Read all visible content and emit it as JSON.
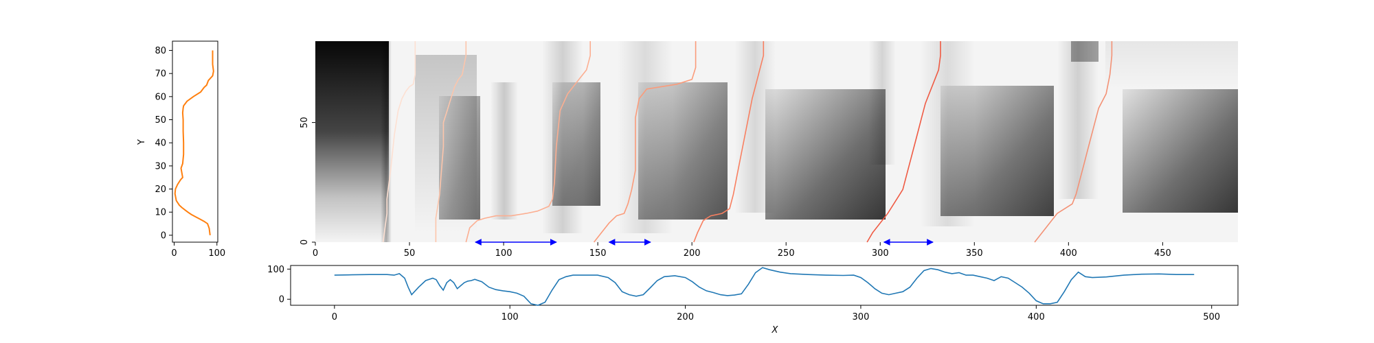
{
  "colors": {
    "orange": "#ff7f0e",
    "blue": "#1f77b4",
    "arrow": "#0000ff",
    "reds": [
      "#fde0d2",
      "#fcc5ab",
      "#fcae91",
      "#fb9b7a",
      "#f87f60",
      "#ef5a43",
      "#f39175",
      "#f6a284"
    ]
  },
  "chart_data": [
    {
      "id": "left-profile",
      "type": "line",
      "xlabel": "",
      "ylabel": "Y",
      "xlim": [
        -4,
        102
      ],
      "ylim": [
        -3,
        84
      ],
      "xticks": [
        "0",
        "100"
      ],
      "yticks": [
        "0",
        "10",
        "20",
        "30",
        "40",
        "50",
        "60",
        "70",
        "80"
      ],
      "series": [
        {
          "x": [
            84,
            82,
            78,
            70,
            60,
            50,
            40,
            32,
            25,
            18,
            12,
            5,
            2,
            3,
            8,
            15,
            20,
            18,
            16,
            20,
            22,
            22,
            21,
            21,
            20,
            21,
            22,
            30,
            45,
            62,
            70,
            76,
            80,
            90,
            92,
            90,
            90
          ],
          "y": [
            0,
            3,
            5,
            6,
            7,
            8,
            9,
            10,
            11,
            12,
            13,
            15,
            18,
            20,
            22,
            24,
            25,
            27,
            29,
            31,
            35,
            40,
            45,
            50,
            53,
            55,
            56,
            58,
            60,
            62,
            64,
            65,
            67,
            69,
            71,
            74,
            80
          ]
        }
      ]
    },
    {
      "id": "main-heatmap",
      "type": "heatmap",
      "xlabel": "",
      "ylabel": "",
      "xlim": [
        0,
        490
      ],
      "ylim": [
        0,
        84
      ],
      "xticks": [
        "0",
        "50",
        "100",
        "150",
        "200",
        "250",
        "300",
        "350",
        "400",
        "450"
      ],
      "yticks": [
        "0",
        "50"
      ],
      "series": [
        {
          "x": [
            36,
            38,
            38,
            40,
            42,
            44,
            46,
            48,
            50,
            52,
            53,
            53,
            53
          ],
          "y": [
            0,
            12,
            18,
            30,
            45,
            55,
            60,
            63,
            65,
            66,
            70,
            78,
            84
          ]
        },
        {
          "x": [
            64,
            64,
            66,
            67,
            68,
            68,
            70,
            72,
            74,
            76,
            78,
            80,
            80
          ],
          "y": [
            0,
            10,
            20,
            30,
            40,
            50,
            55,
            60,
            65,
            68,
            70,
            78,
            84
          ]
        },
        {
          "x": [
            80,
            82,
            86,
            90,
            96,
            104,
            112,
            118,
            124,
            126,
            127,
            128,
            130,
            134,
            140,
            144,
            146,
            146
          ],
          "y": [
            0,
            6,
            9,
            10,
            11,
            11,
            12,
            13,
            15,
            18,
            25,
            40,
            55,
            62,
            68,
            72,
            78,
            84
          ]
        },
        {
          "x": [
            148,
            152,
            156,
            160,
            164,
            166,
            168,
            170,
            170,
            170,
            172,
            176,
            184,
            192,
            200,
            202,
            202
          ],
          "y": [
            0,
            4,
            8,
            11,
            12,
            16,
            22,
            30,
            40,
            52,
            60,
            64,
            65,
            66,
            68,
            73,
            84
          ]
        },
        {
          "x": [
            201,
            203,
            206,
            210,
            216,
            220,
            222,
            224,
            226,
            228,
            230,
            232,
            234,
            236,
            238,
            238
          ],
          "y": [
            0,
            4,
            9,
            11,
            12,
            14,
            20,
            28,
            36,
            44,
            52,
            60,
            66,
            72,
            78,
            84
          ]
        },
        {
          "x": [
            293,
            296,
            300,
            304,
            308,
            312,
            314,
            316,
            318,
            320,
            322,
            324,
            326,
            328,
            331,
            332,
            332
          ],
          "y": [
            0,
            4,
            8,
            12,
            17,
            22,
            28,
            34,
            40,
            46,
            52,
            58,
            62,
            66,
            72,
            78,
            84
          ]
        },
        {
          "x": [
            382,
            386,
            390,
            394,
            398,
            402,
            404,
            406,
            408,
            410,
            412,
            414,
            416,
            420,
            422,
            423,
            423
          ],
          "y": [
            0,
            4,
            8,
            12,
            14,
            16,
            20,
            26,
            32,
            38,
            44,
            50,
            56,
            62,
            70,
            78,
            84
          ]
        }
      ],
      "annotations": [
        {
          "type": "double-arrow",
          "x0": 85,
          "x1": 128,
          "y": 0
        },
        {
          "type": "double-arrow",
          "x0": 156,
          "x1": 178,
          "y": 0
        },
        {
          "type": "double-arrow",
          "x0": 302,
          "x1": 328,
          "y": 0
        }
      ]
    },
    {
      "id": "bottom-profile",
      "type": "line",
      "xlabel": "X",
      "ylabel": "",
      "xlim": [
        -25,
        515
      ],
      "ylim": [
        -20,
        112
      ],
      "xticks": [
        "0",
        "100",
        "200",
        "300",
        "400",
        "500"
      ],
      "yticks": [
        "0",
        "100"
      ],
      "series": [
        {
          "x": [
            0,
            10,
            20,
            30,
            34,
            37,
            40,
            42,
            44,
            48,
            52,
            56,
            58,
            60,
            62,
            64,
            66,
            68,
            70,
            72,
            74,
            76,
            78,
            80,
            84,
            88,
            92,
            96,
            100,
            104,
            108,
            112,
            116,
            120,
            124,
            128,
            132,
            136,
            140,
            150,
            156,
            160,
            164,
            168,
            172,
            176,
            180,
            184,
            188,
            194,
            200,
            204,
            208,
            212,
            216,
            220,
            224,
            228,
            232,
            236,
            240,
            244,
            248,
            254,
            260,
            270,
            280,
            290,
            296,
            300,
            304,
            308,
            312,
            316,
            320,
            324,
            328,
            332,
            336,
            340,
            344,
            348,
            352,
            356,
            360,
            364,
            368,
            372,
            376,
            380,
            384,
            388,
            392,
            396,
            400,
            404,
            408,
            412,
            416,
            420,
            424,
            428,
            432,
            440,
            450,
            460,
            470,
            480,
            490
          ],
          "y": [
            80,
            81,
            82,
            82,
            80,
            85,
            70,
            40,
            15,
            40,
            62,
            70,
            65,
            45,
            30,
            55,
            65,
            55,
            35,
            45,
            55,
            60,
            62,
            66,
            58,
            40,
            32,
            28,
            25,
            20,
            10,
            -15,
            -20,
            -10,
            30,
            65,
            75,
            80,
            80,
            80,
            72,
            55,
            25,
            15,
            10,
            15,
            38,
            62,
            75,
            78,
            72,
            58,
            40,
            28,
            22,
            15,
            12,
            14,
            18,
            50,
            88,
            105,
            98,
            90,
            85,
            82,
            80,
            79,
            80,
            72,
            55,
            35,
            20,
            15,
            20,
            25,
            40,
            70,
            95,
            102,
            98,
            90,
            85,
            88,
            80,
            80,
            75,
            70,
            62,
            75,
            70,
            55,
            40,
            20,
            -5,
            -15,
            -15,
            -10,
            25,
            65,
            90,
            75,
            72,
            74,
            80,
            83,
            84,
            82,
            82
          ]
        }
      ]
    }
  ]
}
